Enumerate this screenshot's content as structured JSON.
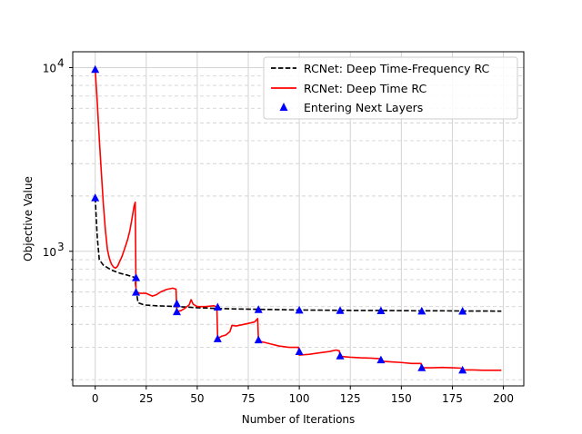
{
  "chart_data": {
    "type": "line",
    "title": "",
    "xlabel": "Number of Iterations",
    "ylabel": "Objective Value",
    "xlim": [
      -11,
      210
    ],
    "ylim": [
      185,
      12200
    ],
    "yscale": "log",
    "grid": true,
    "legend_position": "top-right",
    "x_ticks": [
      0,
      25,
      50,
      75,
      100,
      125,
      150,
      175,
      200
    ],
    "x_tick_labels": [
      "0",
      "25",
      "50",
      "75",
      "100",
      "125",
      "150",
      "175",
      "200"
    ],
    "y_major_ticks": [
      1000,
      10000
    ],
    "y_major_tick_labels": [
      {
        "base": "10",
        "exp": "3"
      },
      {
        "base": "10",
        "exp": "4"
      }
    ],
    "y_minor_ticks": [
      200,
      300,
      400,
      500,
      600,
      700,
      800,
      900,
      2000,
      3000,
      4000,
      5000,
      6000,
      7000,
      8000,
      9000
    ],
    "series": [
      {
        "name": "RCNet: Deep Time-Frequency RC",
        "style": "dashed",
        "color": "#000000",
        "points": [
          [
            0,
            1960
          ],
          [
            1,
            1200
          ],
          [
            2,
            900
          ],
          [
            4,
            840
          ],
          [
            8,
            790
          ],
          [
            12,
            760
          ],
          [
            16,
            740
          ],
          [
            19.5,
            720
          ],
          [
            20,
            620
          ],
          [
            21,
            525
          ],
          [
            24,
            510
          ],
          [
            30,
            505
          ],
          [
            40,
            500
          ],
          [
            50,
            493
          ],
          [
            60,
            488
          ],
          [
            70,
            485
          ],
          [
            80,
            483
          ],
          [
            90,
            481
          ],
          [
            100,
            479
          ],
          [
            110,
            478
          ],
          [
            120,
            477
          ],
          [
            130,
            476
          ],
          [
            140,
            476
          ],
          [
            150,
            475
          ],
          [
            160,
            474
          ],
          [
            170,
            474
          ],
          [
            180,
            473
          ],
          [
            190,
            473
          ],
          [
            199,
            472
          ]
        ]
      },
      {
        "name": "RCNet: Deep Time RC",
        "style": "solid",
        "color": "#ff0000",
        "points": [
          [
            0,
            9800
          ],
          [
            1,
            6500
          ],
          [
            2,
            4100
          ],
          [
            3,
            2700
          ],
          [
            4,
            1800
          ],
          [
            5,
            1300
          ],
          [
            6,
            1020
          ],
          [
            7,
            910
          ],
          [
            8,
            850
          ],
          [
            9,
            820
          ],
          [
            10,
            810
          ],
          [
            11,
            830
          ],
          [
            12,
            880
          ],
          [
            13,
            930
          ],
          [
            14,
            1000
          ],
          [
            15,
            1080
          ],
          [
            16,
            1170
          ],
          [
            17,
            1300
          ],
          [
            18,
            1500
          ],
          [
            19,
            1750
          ],
          [
            19.6,
            1850
          ],
          [
            20,
            600
          ],
          [
            22,
            590
          ],
          [
            25,
            590
          ],
          [
            28,
            570
          ],
          [
            30,
            580
          ],
          [
            32,
            600
          ],
          [
            35,
            620
          ],
          [
            38,
            630
          ],
          [
            39.6,
            622
          ],
          [
            40,
            470
          ],
          [
            42,
            475
          ],
          [
            44,
            490
          ],
          [
            46,
            510
          ],
          [
            47,
            545
          ],
          [
            48,
            515
          ],
          [
            50,
            500
          ],
          [
            54,
            500
          ],
          [
            58,
            505
          ],
          [
            59.6,
            498
          ],
          [
            60,
            335
          ],
          [
            62,
            345
          ],
          [
            64,
            350
          ],
          [
            66,
            365
          ],
          [
            67,
            395
          ],
          [
            69,
            392
          ],
          [
            72,
            398
          ],
          [
            75,
            405
          ],
          [
            78,
            412
          ],
          [
            79.6,
            430
          ],
          [
            80,
            325
          ],
          [
            85,
            315
          ],
          [
            90,
            305
          ],
          [
            95,
            300
          ],
          [
            99.6,
            300
          ],
          [
            100,
            272
          ],
          [
            105,
            275
          ],
          [
            110,
            280
          ],
          [
            115,
            285
          ],
          [
            118,
            290
          ],
          [
            119.6,
            287
          ],
          [
            120,
            268
          ],
          [
            125,
            265
          ],
          [
            130,
            263
          ],
          [
            135,
            262
          ],
          [
            139.6,
            260
          ],
          [
            140,
            252
          ],
          [
            145,
            250
          ],
          [
            150,
            248
          ],
          [
            155,
            245
          ],
          [
            159.6,
            245
          ],
          [
            160,
            232
          ],
          [
            165,
            232
          ],
          [
            170,
            233
          ],
          [
            175,
            232
          ],
          [
            179.6,
            231
          ],
          [
            180,
            226
          ],
          [
            185,
            226
          ],
          [
            190,
            225
          ],
          [
            195,
            225
          ],
          [
            199,
            225
          ]
        ]
      },
      {
        "name": "Entering Next Layers",
        "style": "markers",
        "color": "#0000ff",
        "points": [
          [
            0,
            9800
          ],
          [
            0,
            1960
          ],
          [
            20,
            720
          ],
          [
            20,
            600
          ],
          [
            40,
            520
          ],
          [
            40,
            470
          ],
          [
            60,
            498
          ],
          [
            60,
            335
          ],
          [
            80,
            483
          ],
          [
            80,
            330
          ],
          [
            100,
            479
          ],
          [
            100,
            285
          ],
          [
            120,
            477
          ],
          [
            120,
            270
          ],
          [
            140,
            476
          ],
          [
            140,
            257
          ],
          [
            160,
            474
          ],
          [
            160,
            233
          ],
          [
            180,
            473
          ],
          [
            180,
            226
          ]
        ]
      }
    ]
  }
}
